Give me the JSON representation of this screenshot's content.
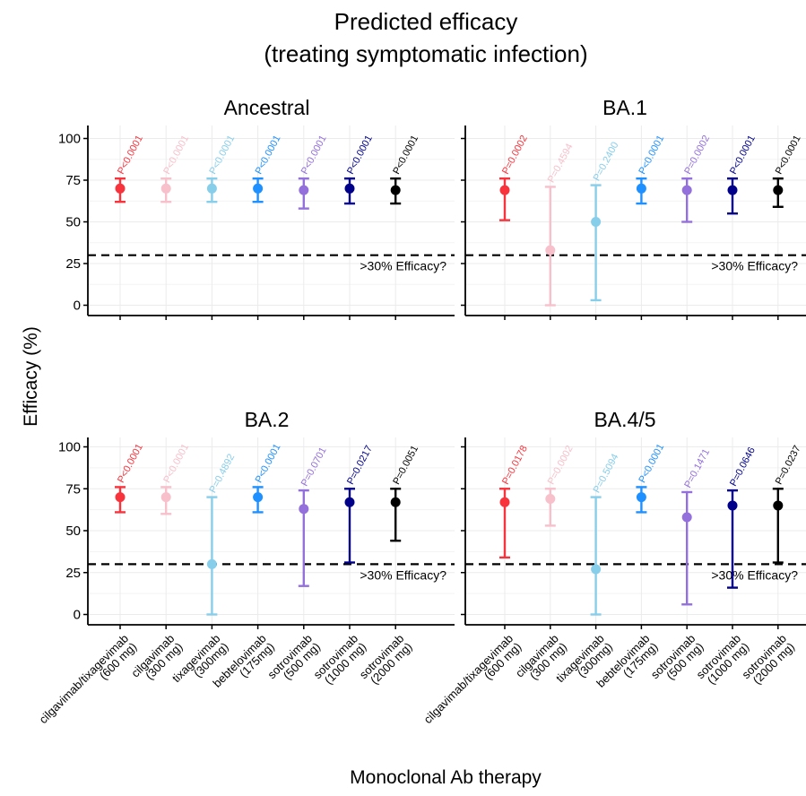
{
  "chart_data": {
    "type": "scatter",
    "title": "Predicted efficacy\n(treating symptomatic infection)",
    "xlabel": "Monoclonal Ab therapy",
    "ylabel": "Efficacy (%)",
    "ylim": [
      0,
      100
    ],
    "yticks": [
      0,
      25,
      50,
      75,
      100
    ],
    "reference_line": {
      "y": 30,
      "label": ">30% Efficacy?"
    },
    "categories": [
      "cilgavimab/tixagevimab\n(600 mg)",
      "cilgavimab\n(300 mg)",
      "tixagevimab\n(300mg)",
      "bebtelovimab\n(175mg)",
      "sotrovimab\n(500 mg)",
      "sotrovimab\n(1000 mg)",
      "sotrovimab\n(2000 mg)"
    ],
    "colors": [
      "#f8333c",
      "#f7c0cb",
      "#87ceeb",
      "#1e90ff",
      "#9370db",
      "#00008b",
      "#000000"
    ],
    "panels": [
      {
        "title": "Ancestral",
        "values": [
          70,
          70,
          70,
          70,
          69,
          70,
          69
        ],
        "lower": [
          62,
          62,
          62,
          62,
          58,
          61,
          61
        ],
        "upper": [
          76,
          76,
          76,
          76,
          76,
          76,
          76
        ],
        "p_values": [
          "P<0.0001",
          "P<0.0001",
          "P<0.0001",
          "P<0.0001",
          "P<0.0001",
          "P<0.0001",
          "P<0.0001"
        ]
      },
      {
        "title": "BA.1",
        "values": [
          69,
          33,
          50,
          70,
          69,
          69,
          69
        ],
        "lower": [
          51,
          0,
          3,
          61,
          50,
          55,
          59
        ],
        "upper": [
          76,
          71,
          72,
          76,
          76,
          76,
          76
        ],
        "p_values": [
          "P=0.0002",
          "P=0.4594",
          "P=0.2400",
          "P<0.0001",
          "P=0.0002",
          "P<0.0001",
          "P<0.0001"
        ]
      },
      {
        "title": "BA.2",
        "values": [
          70,
          70,
          30,
          70,
          63,
          67,
          67
        ],
        "lower": [
          61,
          60,
          0,
          61,
          17,
          31,
          44
        ],
        "upper": [
          76,
          76,
          70,
          76,
          74,
          75,
          75
        ],
        "p_values": [
          "P<0.0001",
          "P<0.0001",
          "P=0.4892",
          "P<0.0001",
          "P=0.0701",
          "P=0.0217",
          "P=0.0051"
        ]
      },
      {
        "title": "BA.4/5",
        "values": [
          67,
          69,
          27,
          70,
          58,
          65,
          65
        ],
        "lower": [
          34,
          53,
          0,
          61,
          6,
          16,
          31
        ],
        "upper": [
          75,
          75,
          70,
          76,
          73,
          74,
          75
        ],
        "p_values": [
          "P=0.0178",
          "P=0.0002",
          "P=0.5094",
          "P<0.0001",
          "P=0.1471",
          "P=0.0646",
          "P=0.0237"
        ]
      }
    ]
  }
}
